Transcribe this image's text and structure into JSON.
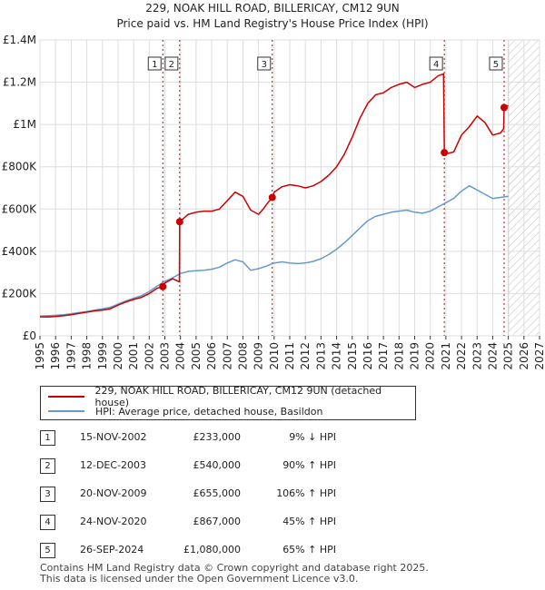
{
  "colors": {
    "property": "#cc0000",
    "hpi": "#6699cc",
    "grid": "#dddddd",
    "marker_line": "#cc0000"
  },
  "chart_data": {
    "type": "line",
    "title": "229, NOAK HILL ROAD, BILLERICAY, CM12 9UN",
    "subtitle": "Price paid vs. HM Land Registry's House Price Index (HPI)",
    "xlim": [
      1995,
      2027
    ],
    "ylim": [
      0,
      1400000
    ],
    "x_ticks": [
      "1995",
      "1996",
      "1997",
      "1998",
      "1999",
      "2000",
      "2001",
      "2002",
      "2003",
      "2004",
      "2005",
      "2006",
      "2007",
      "2008",
      "2009",
      "2010",
      "2011",
      "2012",
      "2013",
      "2014",
      "2015",
      "2016",
      "2017",
      "2018",
      "2019",
      "2020",
      "2021",
      "2022",
      "2023",
      "2024",
      "2025",
      "2026",
      "2027"
    ],
    "y_ticks": [
      {
        "value": 0,
        "label": "£0"
      },
      {
        "value": 200000,
        "label": "£200K"
      },
      {
        "value": 400000,
        "label": "£400K"
      },
      {
        "value": 600000,
        "label": "£600K"
      },
      {
        "value": 800000,
        "label": "£800K"
      },
      {
        "value": 1000000,
        "label": "£1M"
      },
      {
        "value": 1200000,
        "label": "£1.2M"
      },
      {
        "value": 1400000,
        "label": "£1.4M"
      }
    ],
    "future_start": 2025.0,
    "series": [
      {
        "name": "229, NOAK HILL ROAD, BILLERICAY, CM12 9UN (detached house)",
        "x": [
          1995.0,
          1995.5,
          1996.0,
          1996.5,
          1997.0,
          1997.5,
          1998.0,
          1998.5,
          1999.0,
          1999.5,
          2000.0,
          2000.5,
          2001.0,
          2001.5,
          2002.0,
          2002.5,
          2002.87,
          2003.0,
          2003.5,
          2003.93,
          2003.95,
          2004.5,
          2005.0,
          2005.5,
          2006.0,
          2006.5,
          2007.0,
          2007.5,
          2008.0,
          2008.5,
          2009.0,
          2009.3,
          2009.6,
          2009.88,
          2010.0,
          2010.5,
          2011.0,
          2011.5,
          2012.0,
          2012.5,
          2013.0,
          2013.5,
          2014.0,
          2014.5,
          2015.0,
          2015.5,
          2016.0,
          2016.5,
          2017.0,
          2017.5,
          2018.0,
          2018.5,
          2019.0,
          2019.5,
          2020.0,
          2020.5,
          2020.85,
          2020.9,
          2021.0,
          2021.5,
          2022.0,
          2022.5,
          2023.0,
          2023.5,
          2024.0,
          2024.5,
          2024.7,
          2024.73,
          2025.0
        ],
        "y": [
          90000,
          89000,
          92000,
          95000,
          100000,
          106000,
          112000,
          118000,
          122000,
          128000,
          145000,
          160000,
          172000,
          182000,
          200000,
          225000,
          233000,
          250000,
          270000,
          255000,
          540000,
          575000,
          585000,
          590000,
          590000,
          600000,
          640000,
          680000,
          660000,
          595000,
          575000,
          600000,
          630000,
          655000,
          680000,
          705000,
          715000,
          710000,
          700000,
          710000,
          730000,
          760000,
          800000,
          860000,
          940000,
          1030000,
          1100000,
          1140000,
          1150000,
          1175000,
          1190000,
          1200000,
          1175000,
          1190000,
          1200000,
          1230000,
          1240000,
          867000,
          860000,
          870000,
          950000,
          990000,
          1040000,
          1010000,
          950000,
          960000,
          980000,
          1080000,
          1090000
        ]
      },
      {
        "name": "HPI: Average price, detached house, Basildon",
        "x": [
          1995.0,
          1995.5,
          1996.0,
          1996.5,
          1997.0,
          1997.5,
          1998.0,
          1998.5,
          1999.0,
          1999.5,
          2000.0,
          2000.5,
          2001.0,
          2001.5,
          2002.0,
          2002.5,
          2003.0,
          2003.5,
          2004.0,
          2004.5,
          2005.0,
          2005.5,
          2006.0,
          2006.5,
          2007.0,
          2007.5,
          2008.0,
          2008.5,
          2009.0,
          2009.5,
          2010.0,
          2010.5,
          2011.0,
          2011.5,
          2012.0,
          2012.5,
          2013.0,
          2013.5,
          2014.0,
          2014.5,
          2015.0,
          2015.5,
          2016.0,
          2016.5,
          2017.0,
          2017.5,
          2018.0,
          2018.5,
          2019.0,
          2019.5,
          2020.0,
          2020.5,
          2021.0,
          2021.5,
          2022.0,
          2022.5,
          2023.0,
          2023.5,
          2024.0,
          2024.5,
          2025.0
        ],
        "y": [
          93000,
          95000,
          97000,
          100000,
          105000,
          110000,
          115000,
          122000,
          128000,
          135000,
          150000,
          165000,
          178000,
          190000,
          210000,
          235000,
          258000,
          275000,
          295000,
          305000,
          308000,
          310000,
          315000,
          325000,
          345000,
          360000,
          350000,
          310000,
          318000,
          330000,
          345000,
          350000,
          345000,
          342000,
          345000,
          352000,
          365000,
          385000,
          410000,
          440000,
          475000,
          510000,
          545000,
          565000,
          575000,
          585000,
          590000,
          595000,
          585000,
          580000,
          590000,
          610000,
          630000,
          650000,
          685000,
          710000,
          690000,
          670000,
          650000,
          655000,
          660000
        ]
      }
    ],
    "transactions": [
      {
        "num": "1",
        "x": 2002.87,
        "y": 233000
      },
      {
        "num": "2",
        "x": 2003.95,
        "y": 540000
      },
      {
        "num": "3",
        "x": 2009.88,
        "y": 655000
      },
      {
        "num": "4",
        "x": 2020.9,
        "y": 867000
      },
      {
        "num": "5",
        "x": 2024.73,
        "y": 1080000
      }
    ]
  },
  "legend": {
    "property_label": "229, NOAK HILL ROAD, BILLERICAY, CM12 9UN (detached house)",
    "hpi_label": "HPI: Average price, detached house, Basildon"
  },
  "table": {
    "rows": [
      {
        "num": "1",
        "date": "15-NOV-2002",
        "price": "£233,000",
        "hpi": "9% ↓ HPI"
      },
      {
        "num": "2",
        "date": "12-DEC-2003",
        "price": "£540,000",
        "hpi": "90% ↑ HPI"
      },
      {
        "num": "3",
        "date": "20-NOV-2009",
        "price": "£655,000",
        "hpi": "106% ↑ HPI"
      },
      {
        "num": "4",
        "date": "24-NOV-2020",
        "price": "£867,000",
        "hpi": "45% ↑ HPI"
      },
      {
        "num": "5",
        "date": "26-SEP-2024",
        "price": "£1,080,000",
        "hpi": "65% ↑ HPI"
      }
    ]
  },
  "footer": {
    "line1": "Contains HM Land Registry data © Crown copyright and database right 2025.",
    "line2": "This data is licensed under the Open Government Licence v3.0."
  }
}
